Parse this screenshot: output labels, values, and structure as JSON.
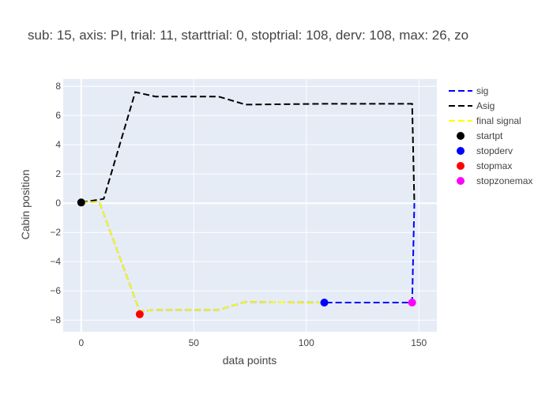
{
  "chart_data": {
    "type": "line",
    "title": "sub: 15, axis: PI, trial: 11, starttrial: 0, stoptrial: 108, derv: 108, max: 26, zo",
    "xlabel": "data points",
    "ylabel": "Cabin position",
    "xlim": [
      -8,
      158
    ],
    "ylim": [
      -8.8,
      8.5
    ],
    "x_ticks": [
      0,
      50,
      100,
      150
    ],
    "y_ticks": [
      -8,
      -6,
      -4,
      -2,
      0,
      2,
      4,
      6,
      8
    ],
    "grid": true,
    "background": "#e5ecf6",
    "legend_position": "right",
    "series": [
      {
        "name": "sig",
        "mode": "dashed-line",
        "color": "#0000ff",
        "x": [
          0,
          8,
          26,
          33,
          61,
          73,
          108,
          147,
          148
        ],
        "y": [
          0.05,
          0.1,
          -7.4,
          -7.3,
          -7.3,
          -6.75,
          -6.8,
          -6.8,
          0
        ]
      },
      {
        "name": "Asig",
        "mode": "dashed-line",
        "color": "#000000",
        "x": [
          0,
          10,
          24,
          33,
          61,
          73,
          108,
          147,
          148
        ],
        "y": [
          0.05,
          0.3,
          7.6,
          7.3,
          7.3,
          6.75,
          6.8,
          6.8,
          0
        ]
      },
      {
        "name": "final signal",
        "mode": "dashed-line",
        "color": "#ffff00",
        "x": [
          0,
          8,
          26,
          33,
          61,
          73,
          108
        ],
        "y": [
          0.05,
          0.1,
          -7.4,
          -7.3,
          -7.3,
          -6.75,
          -6.8
        ]
      },
      {
        "name": "startpt",
        "mode": "marker",
        "color": "#000000",
        "x": [
          0
        ],
        "y": [
          0.05
        ]
      },
      {
        "name": "stopderv",
        "mode": "marker",
        "color": "#0000ff",
        "x": [
          108
        ],
        "y": [
          -6.8
        ]
      },
      {
        "name": "stopmax",
        "mode": "marker",
        "color": "#ff0000",
        "x": [
          26
        ],
        "y": [
          -7.6
        ]
      },
      {
        "name": "stopzonemax",
        "mode": "marker",
        "color": "#ff00ff",
        "x": [
          147
        ],
        "y": [
          -6.8
        ]
      }
    ]
  }
}
